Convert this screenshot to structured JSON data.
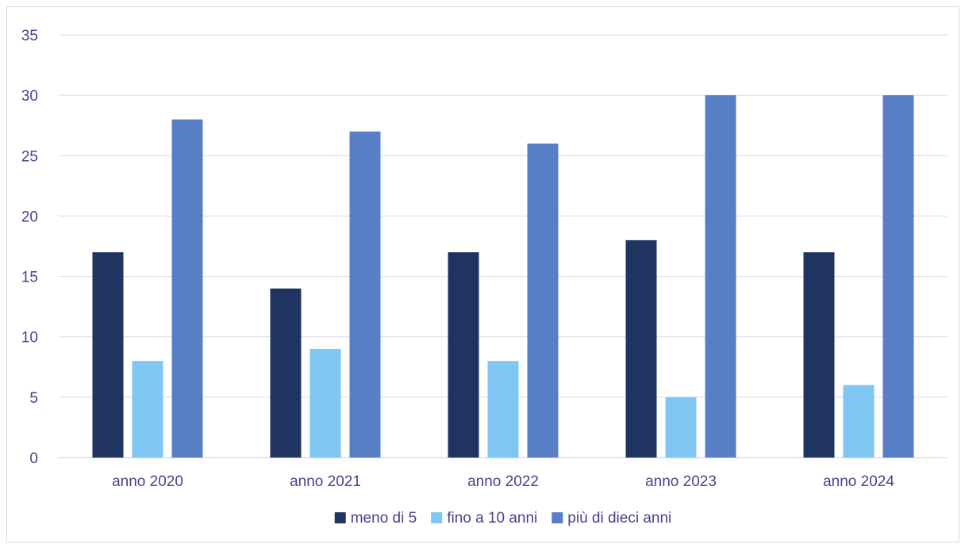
{
  "chart_data": {
    "type": "bar",
    "categories": [
      "anno 2020",
      "anno 2021",
      "anno 2022",
      "anno 2023",
      "anno 2024"
    ],
    "series": [
      {
        "name": "meno di 5",
        "color": "#1f3461",
        "values": [
          17,
          14,
          17,
          18,
          17
        ]
      },
      {
        "name": "fino a 10 anni",
        "color": "#7fc6f2",
        "values": [
          8,
          9,
          8,
          5,
          6
        ]
      },
      {
        "name": "più di dieci anni",
        "color": "#587fc6",
        "values": [
          28,
          27,
          26,
          30,
          30
        ]
      }
    ],
    "ylim": [
      0,
      35
    ],
    "yticks": [
      0,
      5,
      10,
      15,
      20,
      25,
      30,
      35
    ],
    "grid": true,
    "legend_position": "bottom"
  }
}
